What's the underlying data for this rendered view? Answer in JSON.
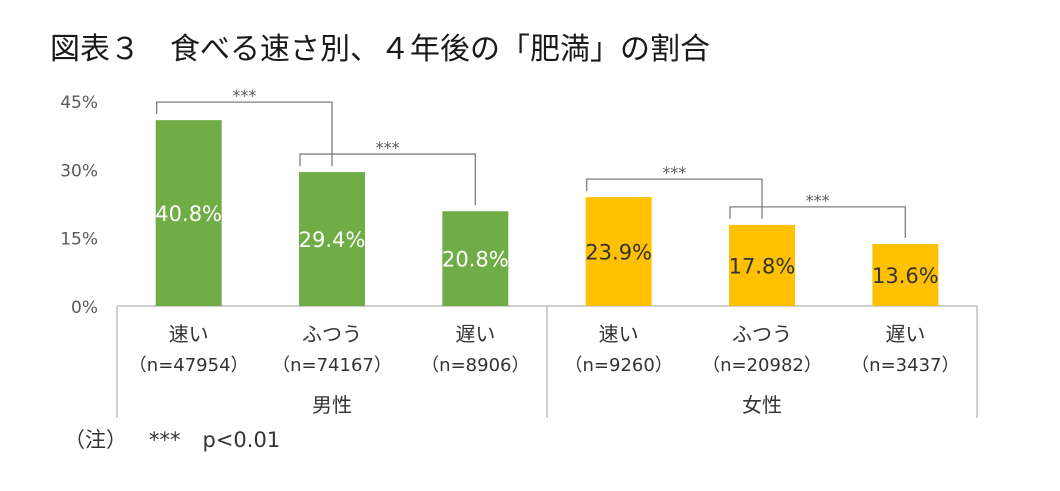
{
  "title": "図表３　食べる速さ別、４年後の「肥満」の割合",
  "note": {
    "label": "（注）",
    "stars": "***",
    "text": "p<0.01"
  },
  "chart_data": {
    "type": "bar",
    "ylim": [
      0,
      45
    ],
    "yticks": [
      0,
      15,
      30,
      45
    ],
    "yticklabels": [
      "0%",
      "15%",
      "30%",
      "45%"
    ],
    "groups": [
      {
        "name": "男性",
        "color": "#70ad47",
        "label_color": "#ffffff",
        "categories": [
          "速い",
          "ふつう",
          "遅い"
        ],
        "ns": [
          "（n=47954）",
          "（n=74167）",
          "（n=8906）"
        ],
        "values": [
          40.8,
          29.4,
          20.8
        ],
        "labels": [
          "40.8%",
          "29.4%",
          "20.8%"
        ]
      },
      {
        "name": "女性",
        "color": "#ffc000",
        "label_color": "#333333",
        "categories": [
          "速い",
          "ふつう",
          "遅い"
        ],
        "ns": [
          "（n=9260）",
          "（n=20982）",
          "（n=3437）"
        ],
        "values": [
          23.9,
          17.8,
          13.6
        ],
        "labels": [
          "23.9%",
          "17.8%",
          "13.6%"
        ]
      }
    ],
    "significance": [
      {
        "group": 0,
        "from": 0,
        "to": 1,
        "label": "***"
      },
      {
        "group": 0,
        "from": 1,
        "to": 2,
        "label": "***"
      },
      {
        "group": 1,
        "from": 0,
        "to": 1,
        "label": "***"
      },
      {
        "group": 1,
        "from": 1,
        "to": 2,
        "label": "***"
      }
    ]
  }
}
